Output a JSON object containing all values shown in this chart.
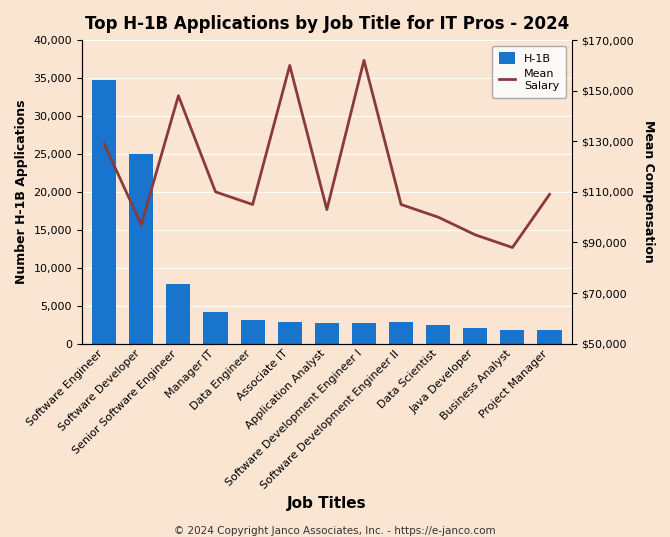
{
  "title": "Top H-1B Applications by Job Title for IT Pros - 2024",
  "xlabel": "Job Titles",
  "ylabel_left": "Number H-1B Applications",
  "ylabel_right": "Mean Compensation",
  "footer": "© 2024 Copyright Janco Associates, Inc. - https://e-janco.com",
  "categories": [
    "Software Engineer",
    "Software Developer",
    "Senior Software Engineer",
    "Manager IT",
    "Data Engineer",
    "Associate IT",
    "Application Analyst",
    "Software Development Engineer I",
    "Software Development Engineer II",
    "Data Scientist",
    "Java Developer",
    "Business Analyst",
    "Project Manager"
  ],
  "bar_values": [
    34700,
    25000,
    7800,
    4200,
    3100,
    2900,
    2700,
    2700,
    2800,
    2500,
    2000,
    1800,
    1800
  ],
  "salary_values": [
    129000,
    97000,
    148000,
    110000,
    105000,
    160000,
    103000,
    162000,
    105000,
    100000,
    93000,
    88000,
    109000
  ],
  "bar_color": "#1874CD",
  "line_color": "#8B3A3A",
  "background_color": "#FAE5D3",
  "fig_background_color": "#FAE5D3",
  "ylim_left": [
    0,
    40000
  ],
  "ylim_right": [
    50000,
    170000
  ],
  "left_yticks": [
    0,
    5000,
    10000,
    15000,
    20000,
    25000,
    30000,
    35000,
    40000
  ],
  "right_yticks": [
    50000,
    70000,
    90000,
    110000,
    130000,
    150000,
    170000
  ],
  "title_fontsize": 12,
  "label_fontsize": 9,
  "tick_fontsize": 8,
  "xlabel_fontsize": 11,
  "legend_labels": [
    "H-1B",
    "Mean\nSalary"
  ]
}
